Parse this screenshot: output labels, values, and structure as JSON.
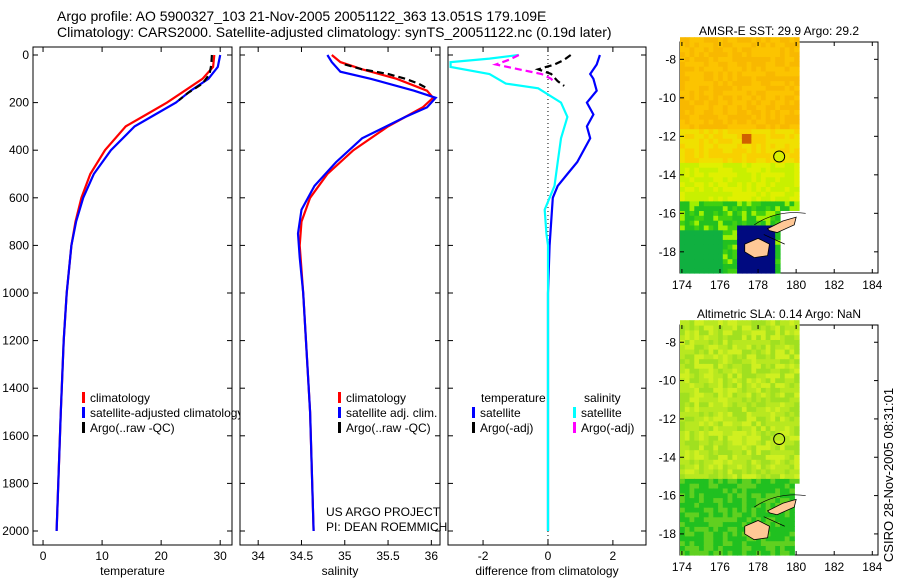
{
  "title_line1": "Argo profile: AO 5900327_103 21-Nov-2005 20051122_363 13.051S 179.109E",
  "title_line2": "Climatology: CARS2000. Satellite-adjusted climatology: synTS_20051122.nc (0.19d later)",
  "side_label": "CSIRO 28-Nov-2005 08:31:01",
  "colors": {
    "red": "#ff0000",
    "blue": "#0000ff",
    "black": "#000000",
    "cyan": "#00ffff",
    "magenta": "#ff00ff"
  },
  "chart_data": [
    {
      "type": "line",
      "id": "temperature",
      "xlabel": "temperature",
      "ylabel": "",
      "xlim": [
        -1.7,
        32
      ],
      "ylim": [
        0,
        2080
      ],
      "yreverse": true,
      "xticks": [
        0,
        10,
        20,
        30
      ],
      "yticks": [
        0,
        200,
        400,
        600,
        800,
        1000,
        1200,
        1400,
        1600,
        1800,
        2000
      ],
      "legend": [
        "climatology",
        "satellite-adjusted climatology",
        "Argo(..raw -QC)"
      ],
      "legend_placement": "lower-left",
      "series": [
        {
          "name": "climatology",
          "color": "red",
          "depth": [
            0,
            50,
            100,
            150,
            200,
            250,
            300,
            400,
            500,
            600,
            700,
            800,
            1000,
            1200,
            1500,
            2000
          ],
          "values": [
            29,
            28.8,
            27,
            24,
            21,
            17.5,
            14,
            10.5,
            8,
            6.5,
            5.5,
            4.8,
            4.0,
            3.5,
            3.0,
            2.3
          ]
        },
        {
          "name": "satellite-adjusted climatology",
          "color": "blue",
          "depth": [
            0,
            50,
            100,
            150,
            200,
            250,
            300,
            400,
            500,
            600,
            700,
            800,
            1000,
            1200,
            1500,
            2000
          ],
          "values": [
            30,
            29.6,
            28,
            25,
            22.5,
            19,
            15.5,
            11.5,
            8.6,
            6.8,
            5.6,
            4.8,
            4.0,
            3.5,
            3.0,
            2.3
          ]
        },
        {
          "name": "Argo(..raw -QC)",
          "color": "black",
          "dashed": true,
          "depth": [
            0,
            40,
            80,
            120,
            160,
            190
          ],
          "values": [
            28.6,
            28.5,
            28.2,
            27,
            24.5,
            23
          ]
        }
      ]
    },
    {
      "type": "line",
      "id": "salinity",
      "xlabel": "salinity",
      "xlim": [
        33.79,
        36.1
      ],
      "ylim": [
        0,
        2080
      ],
      "yreverse": true,
      "xticks": [
        34,
        34.5,
        35,
        35.5,
        36
      ],
      "legend": [
        "climatology",
        "satellite adj. clim.",
        "Argo(..raw -QC)"
      ],
      "legend_placement": "lower-right",
      "annotation": [
        "US ARGO PROJECT",
        "PI: DEAN ROEMMICH"
      ],
      "series": [
        {
          "name": "climatology",
          "color": "red",
          "depth": [
            0,
            30,
            60,
            100,
            150,
            180,
            220,
            260,
            300,
            400,
            500,
            600,
            700,
            800,
            1000,
            1500,
            2000
          ],
          "values": [
            34.85,
            34.95,
            35.2,
            35.6,
            35.95,
            36.02,
            35.9,
            35.7,
            35.5,
            35.1,
            34.8,
            34.6,
            34.5,
            34.48,
            34.52,
            34.6,
            34.64
          ]
        },
        {
          "name": "satellite adj. clim.",
          "color": "blue",
          "depth": [
            0,
            30,
            70,
            100,
            150,
            180,
            220,
            260,
            350,
            450,
            550,
            650,
            750,
            850,
            1000,
            1500,
            2000
          ],
          "values": [
            34.8,
            34.85,
            34.95,
            35.3,
            35.8,
            36.05,
            35.95,
            35.7,
            35.2,
            34.9,
            34.65,
            34.5,
            34.46,
            34.48,
            34.52,
            34.6,
            34.64
          ]
        },
        {
          "name": "Argo(..raw -QC)",
          "color": "black",
          "dashed": true,
          "depth": [
            40,
            60,
            80,
            100,
            120,
            140
          ],
          "values": [
            35.0,
            35.2,
            35.5,
            35.7,
            35.85,
            35.95
          ]
        }
      ]
    },
    {
      "type": "line",
      "id": "difference",
      "xlabel": "difference from climatology",
      "xlim": [
        -3.08,
        3.02
      ],
      "ylim": [
        0,
        2080
      ],
      "yreverse": true,
      "xticks": [
        -2,
        0,
        2
      ],
      "legend_headers": [
        "temperature",
        "salinity"
      ],
      "legend": [
        "satellite",
        "Argo(-adj)",
        "satellite",
        "Argo(-adj)"
      ],
      "series": [
        {
          "name": "temperature satellite",
          "color": "blue",
          "depth": [
            0,
            40,
            80,
            100,
            150,
            200,
            250,
            300,
            350,
            450,
            500,
            550,
            600,
            700,
            800,
            1000,
            2000
          ],
          "values": [
            1.6,
            1.5,
            1.3,
            1.4,
            1.5,
            1.2,
            1.4,
            1.2,
            1.3,
            0.9,
            0.6,
            0.3,
            0.15,
            0.1,
            0.05,
            0,
            0
          ]
        },
        {
          "name": "salinity satellite",
          "color": "cyan",
          "depth": [
            0,
            15,
            30,
            50,
            80,
            120,
            140,
            200,
            260,
            350,
            450,
            550,
            650,
            750,
            800,
            1000,
            2000
          ],
          "values": [
            -0.9,
            -1.8,
            -3.0,
            -3.0,
            -1.8,
            -1.3,
            -0.3,
            0.4,
            0.6,
            0.4,
            0.3,
            0.2,
            -0.1,
            -0.05,
            0,
            0,
            0
          ]
        },
        {
          "name": "salinity Argo(-adj)",
          "color": "magenta",
          "dashed": true,
          "depth": [
            0,
            20,
            40,
            60,
            80,
            100,
            120
          ],
          "values": [
            -0.9,
            -1.2,
            -1.6,
            -0.9,
            -0.2,
            0.1,
            0.2
          ]
        },
        {
          "name": "temperature Argo(-adj)",
          "color": "black",
          "dashed": true,
          "depth": [
            0,
            20,
            40,
            60,
            80,
            110,
            130
          ],
          "values": [
            0.7,
            0.5,
            0.2,
            -0.3,
            0.1,
            0.3,
            0.5
          ]
        }
      ]
    },
    {
      "type": "heatmap",
      "id": "sst-map",
      "title": "AMSR-E SST: 29.9  Argo: 29.2",
      "xlim": [
        173.9,
        184.3
      ],
      "ylim": [
        -19.1,
        -7.1
      ],
      "xticks": [
        174,
        176,
        178,
        180,
        182,
        184
      ],
      "yticks": [
        -8,
        -10,
        -12,
        -14,
        -16,
        -18
      ],
      "marker": {
        "lon": 179.109,
        "lat": -13.051
      }
    },
    {
      "type": "heatmap",
      "id": "sla-map",
      "title": "Altimetric SLA: 0.14  Argo: NaN",
      "xlim": [
        173.9,
        184.3
      ],
      "ylim": [
        -19.1,
        -7.1
      ],
      "xticks": [
        174,
        176,
        178,
        180,
        182,
        184
      ],
      "yticks": [
        -8,
        -10,
        -12,
        -14,
        -16,
        -18
      ],
      "marker": {
        "lon": 179.109,
        "lat": -13.051
      }
    }
  ]
}
